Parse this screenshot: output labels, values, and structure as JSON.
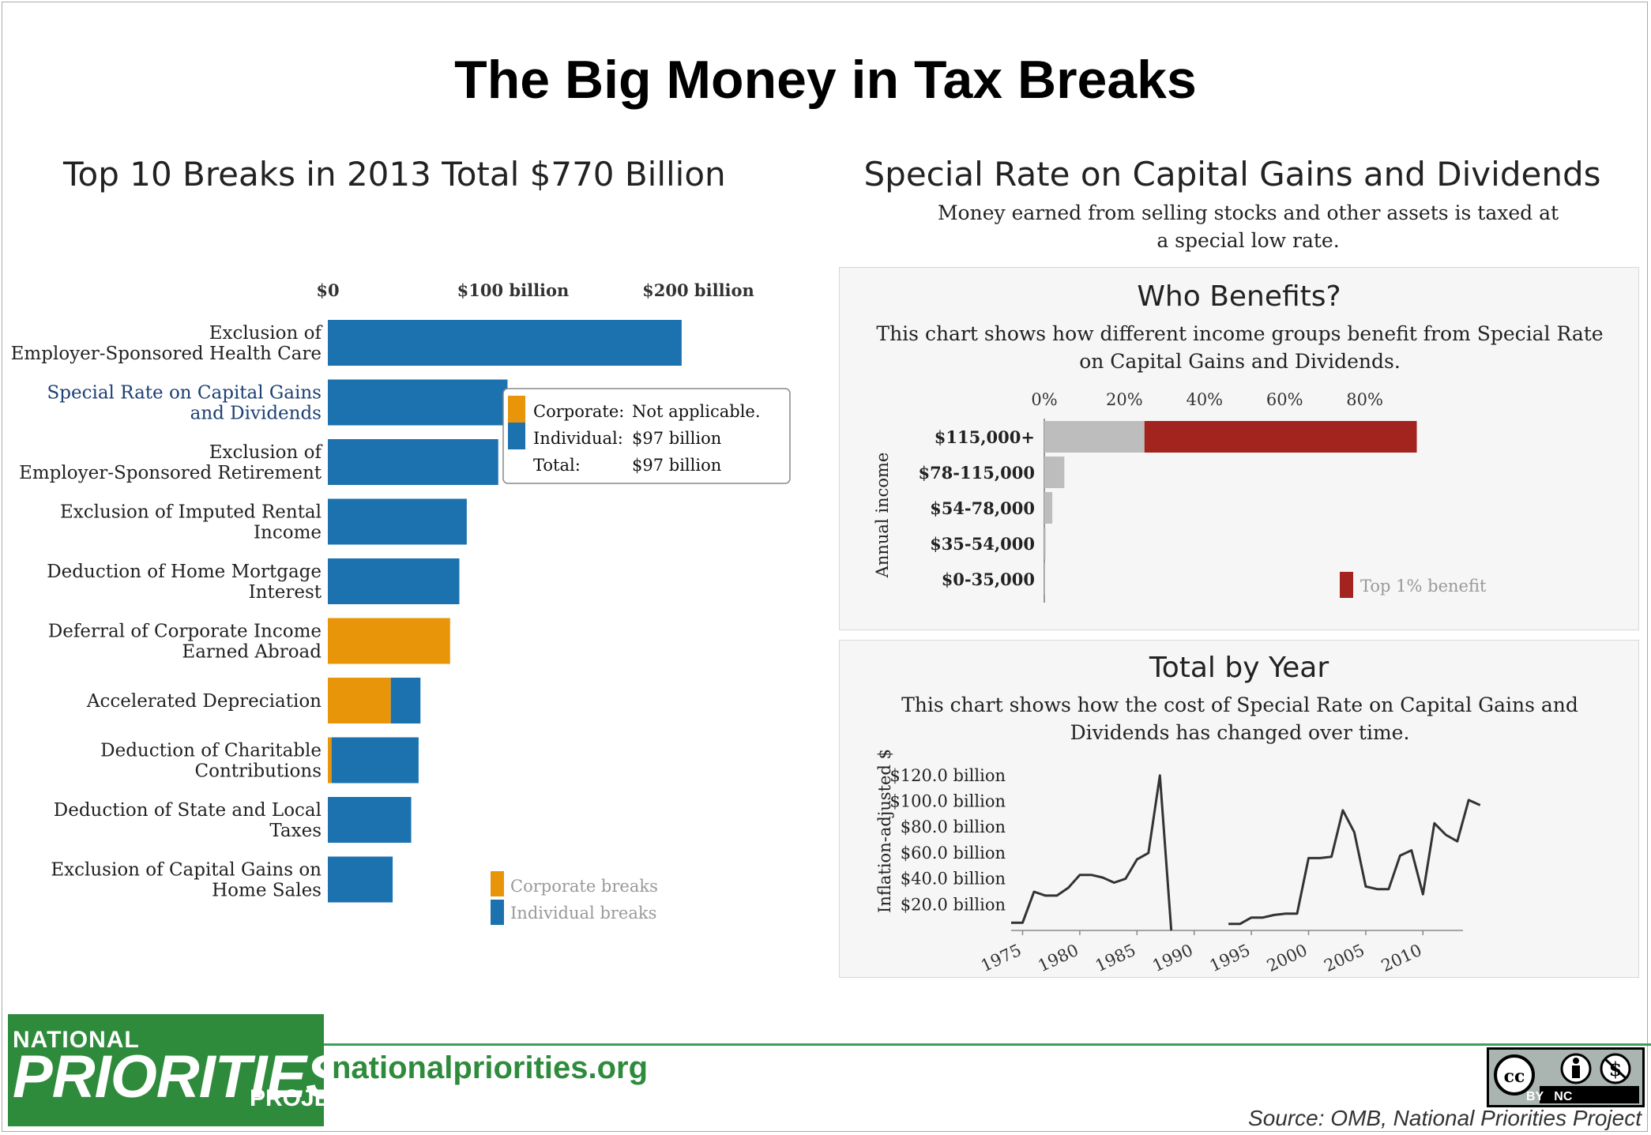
{
  "title": "The Big Money in Tax Breaks",
  "left_chart_title": "Top 10 Breaks in 2013 Total $770 Billion",
  "right_title": "Special Rate on Capital Gains and Dividends",
  "right_subtitle": "Money earned from selling stocks and other assets is taxed at a special low rate.",
  "tooltip": {
    "rows": [
      {
        "label": "Corporate:",
        "value": "Not applicable.",
        "color": "#e8950a"
      },
      {
        "label": "Individual:",
        "value": "$97 billion",
        "color": "#1b72ae"
      },
      {
        "label": "Total:",
        "value": "$97 billion"
      }
    ]
  },
  "who_benefits": {
    "title": "Who Benefits?",
    "description": "This chart shows how different income groups benefit from Special Rate on Capital Gains and Dividends."
  },
  "total_by_year": {
    "title": "Total by Year",
    "description": "This chart shows how the cost of Special Rate on Capital Gains and Dividends has changed over time."
  },
  "footer": {
    "logo_small": "NATIONAL",
    "logo_big": "PRIORITIES",
    "logo_project": "PROJECT",
    "site": "nationalpriorities.org",
    "license": "BY   NC",
    "source": "Source: OMB, National Priorities Project"
  },
  "colors": {
    "corporate": "#e8950a",
    "individual": "#1b72ae",
    "top1": "#a3231f",
    "grey": "#bdbdbd"
  },
  "chart_data": [
    {
      "type": "bar",
      "orientation": "horizontal",
      "stacked": true,
      "title": "Top 10 Breaks in 2013 Total $770 Billion",
      "tick_labels": [
        "$0",
        "$100 billion",
        "$200 billion"
      ],
      "tick_values": [
        0,
        100,
        200
      ],
      "categories": [
        [
          "Exclusion of",
          "Employer-Sponsored Health Care"
        ],
        [
          "Special Rate on Capital Gains",
          "and Dividends"
        ],
        [
          "Exclusion of",
          "Employer-Sponsored Retirement"
        ],
        [
          "Exclusion of Imputed Rental",
          "Income"
        ],
        [
          "Deduction of Home Mortgage",
          "Interest"
        ],
        [
          "Deferral of Corporate Income",
          "Earned Abroad"
        ],
        [
          "Accelerated Depreciation"
        ],
        [
          "Deduction of Charitable",
          "Contributions"
        ],
        [
          "Deduction of State and Local",
          "Taxes"
        ],
        [
          "Exclusion of Capital Gains on",
          "Home Sales"
        ]
      ],
      "highlighted_index": 1,
      "series": [
        {
          "name": "Corporate breaks",
          "values": [
            0,
            0,
            0,
            0,
            0,
            66,
            34,
            2,
            0,
            0
          ]
        },
        {
          "name": "Individual breaks",
          "values": [
            191,
            97,
            92,
            75,
            71,
            0,
            16,
            47,
            45,
            35
          ]
        }
      ],
      "xlim": [
        0,
        215
      ],
      "legend_position": "bottom-right"
    },
    {
      "type": "bar",
      "orientation": "horizontal",
      "title": "Who Benefits?",
      "ylabel": "Annual income",
      "tick_labels": [
        "0%",
        "20%",
        "40%",
        "60%",
        "80%"
      ],
      "tick_values": [
        0,
        20,
        40,
        60,
        80
      ],
      "categories": [
        "$115,000+",
        "$78-115,000",
        "$54-78,000",
        "$35-54,000",
        "$0-35,000"
      ],
      "series": [
        {
          "name": "",
          "values": [
            25,
            5,
            2,
            0.3,
            0.2
          ]
        },
        {
          "name": "Top 1% benefit",
          "values": [
            68,
            0,
            0,
            0,
            0
          ]
        }
      ],
      "legend": [
        "Top 1% benefit"
      ],
      "xlim": [
        0,
        95
      ]
    },
    {
      "type": "line",
      "title": "Total by Year",
      "ylabel": "Inflation-adjusted $",
      "y_tick_labels": [
        "$20.0 billion",
        "$40.0 billion",
        "$60.0 billion",
        "$80.0 billion",
        "$100.0 billion",
        "$120.0 billion"
      ],
      "y_tick_values": [
        20,
        40,
        60,
        80,
        100,
        120
      ],
      "x_tick_labels": [
        "1975",
        "1980",
        "1985",
        "1990",
        "1995",
        "2000",
        "2005",
        "2010"
      ],
      "x_tick_values": [
        1975,
        1980,
        1985,
        1990,
        1995,
        2000,
        2005,
        2010
      ],
      "xlim": [
        1974,
        2013.5
      ],
      "ylim": [
        0,
        125
      ],
      "segments": [
        [
          [
            1974,
            6
          ],
          [
            1975,
            6
          ],
          [
            1976,
            30
          ],
          [
            1977,
            27
          ],
          [
            1978,
            27
          ],
          [
            1979,
            33
          ],
          [
            1980,
            43
          ],
          [
            1981,
            43
          ],
          [
            1982,
            41
          ],
          [
            1983,
            37
          ],
          [
            1984,
            40
          ],
          [
            1985,
            55
          ],
          [
            1986,
            60
          ],
          [
            1987,
            120
          ],
          [
            1988,
            0
          ]
        ],
        [
          [
            1993,
            5
          ],
          [
            1994,
            5
          ],
          [
            1995,
            10
          ],
          [
            1996,
            10
          ],
          [
            1997,
            12
          ],
          [
            1998,
            13
          ],
          [
            1999,
            13
          ],
          [
            2000,
            56
          ],
          [
            2001,
            56
          ],
          [
            2002,
            57
          ],
          [
            2003,
            93
          ],
          [
            2004,
            76
          ],
          [
            2005,
            34
          ],
          [
            2006,
            32
          ],
          [
            2007,
            32
          ],
          [
            2008,
            58
          ],
          [
            2009,
            62
          ],
          [
            2010,
            28
          ],
          [
            2011,
            83
          ],
          [
            2012,
            74
          ],
          [
            2013,
            69
          ],
          [
            2014,
            101
          ],
          [
            2015,
            97
          ]
        ]
      ]
    }
  ]
}
